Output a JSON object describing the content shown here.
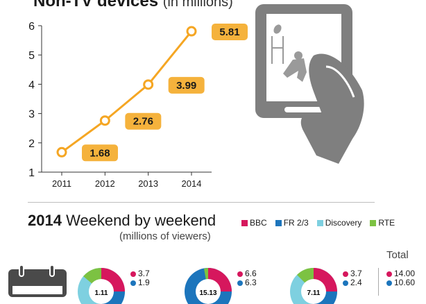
{
  "title": {
    "main": "Non-TV devices",
    "units": "(in millions)"
  },
  "chart_data": {
    "type": "line",
    "x": [
      "2011",
      "2012",
      "2013",
      "2014"
    ],
    "values": [
      1.68,
      2.76,
      3.99,
      5.81
    ],
    "data_labels": [
      "1.68",
      "2.76",
      "3.99",
      "5.81"
    ],
    "yticks": [
      "1",
      "2",
      "3",
      "4",
      "5",
      "6"
    ],
    "ylim": [
      1,
      6
    ],
    "line_color": "#f5a623",
    "label_bg": "#f5b23c"
  },
  "section2": {
    "year": "2014",
    "title": "Weekend by weekend",
    "subtitle": "(millions of viewers)",
    "legend": [
      {
        "label": "BBC",
        "color": "#d6175d"
      },
      {
        "label": "FR 2/3",
        "color": "#1c75bc"
      },
      {
        "label": "Discovery",
        "color": "#7ed0e0"
      },
      {
        "label": "RTE",
        "color": "#7cc242"
      }
    ],
    "total_label": "Total",
    "weekends": [
      {
        "center": "1.11",
        "bbc": "3.7",
        "fr": "1.9"
      },
      {
        "center": "15.13",
        "bbc": "6.6",
        "fr": "6.3"
      },
      {
        "center": "7.11",
        "bbc": "3.7",
        "fr": "2.4"
      }
    ],
    "totals": {
      "bbc": "14.00",
      "fr": "10.60"
    }
  }
}
